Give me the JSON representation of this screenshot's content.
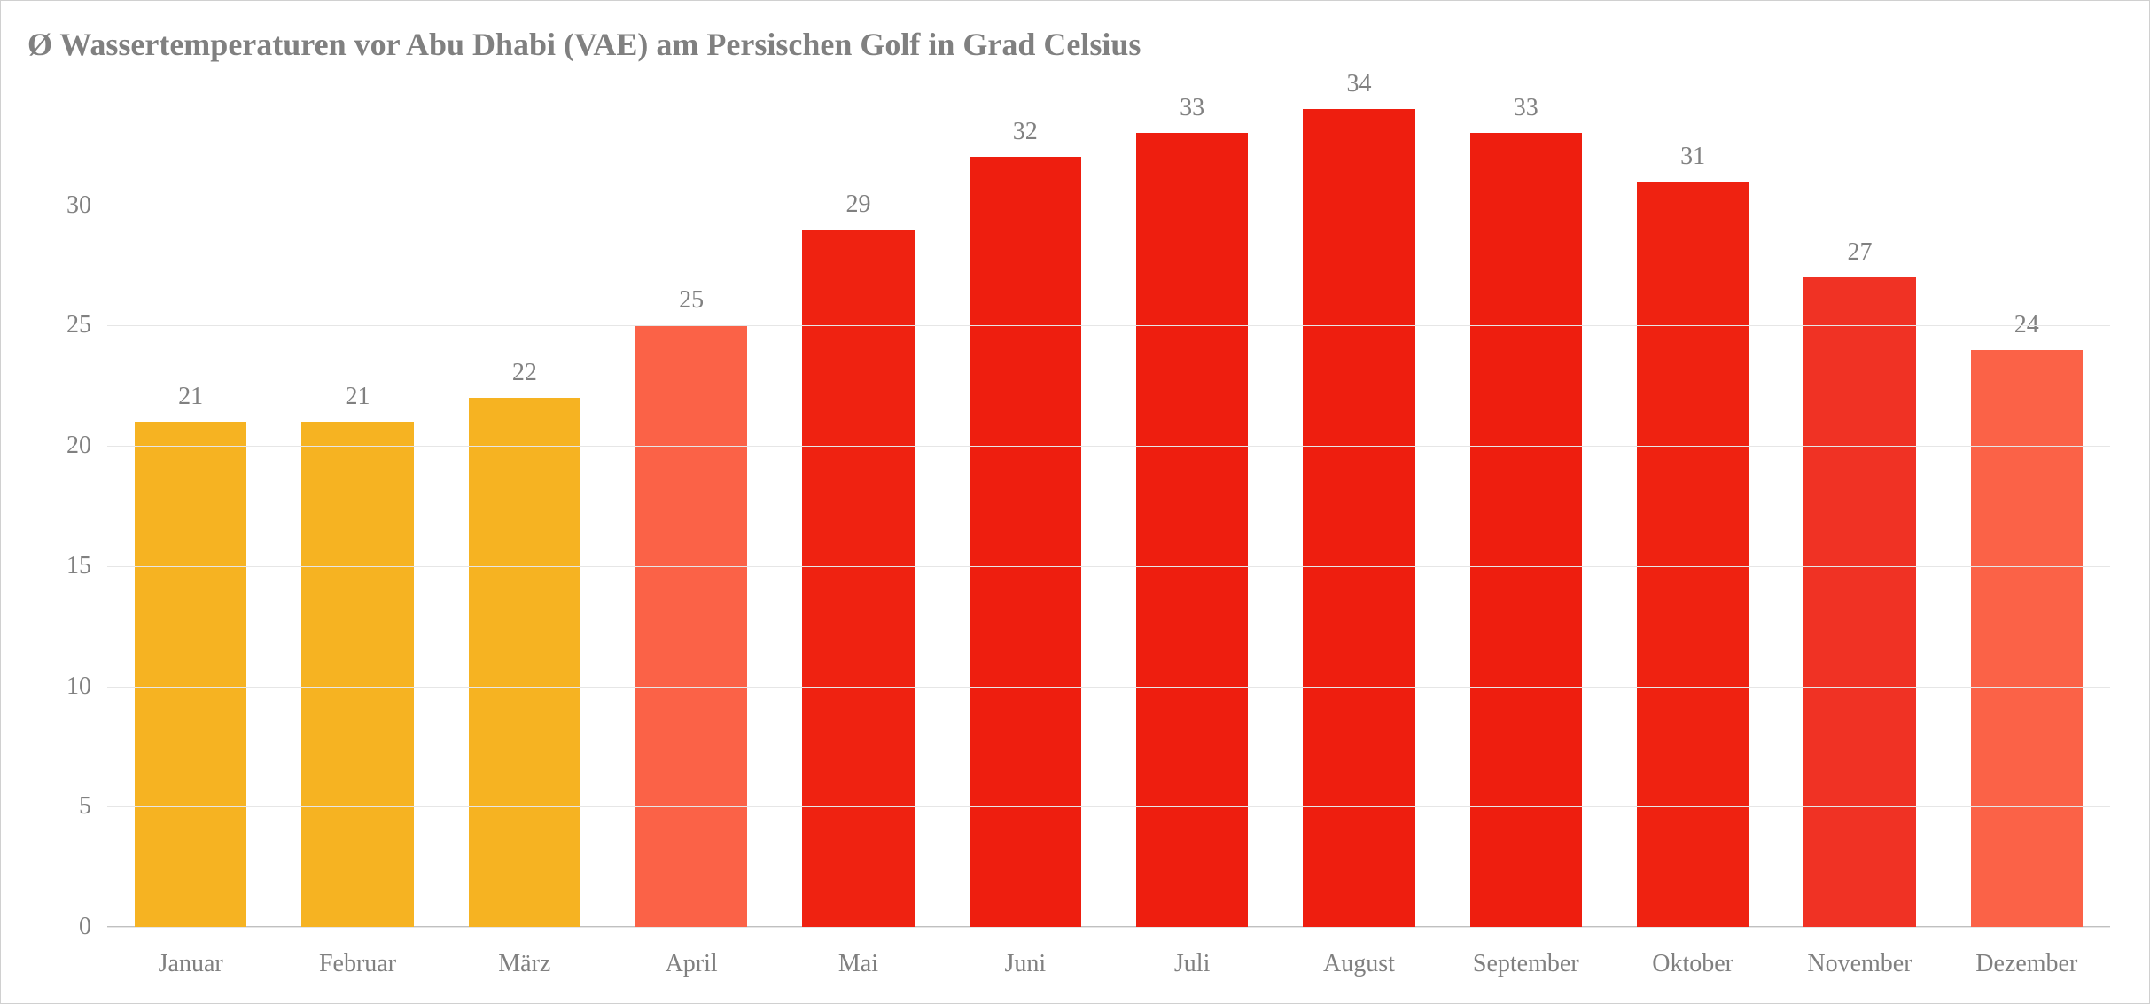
{
  "chart": {
    "type": "bar",
    "title": "Ø Wassertemperaturen vor Abu Dhabi (VAE) am Persischen Golf in Grad Celsius",
    "title_fontsize": 36,
    "title_color": "#808080",
    "background_color": "#ffffff",
    "border_color": "#d0d0d0",
    "grid_color": "#e6e6e6",
    "axis_color": "#c0c0c0",
    "label_color": "#808080",
    "label_fontsize": 28,
    "ylim": [
      0,
      35
    ],
    "ytick_step": 5,
    "yticks": [
      0,
      5,
      10,
      15,
      20,
      25,
      30
    ],
    "bar_width": 0.67,
    "categories": [
      "Januar",
      "Februar",
      "März",
      "April",
      "Mai",
      "Juni",
      "Juli",
      "August",
      "September",
      "Oktober",
      "November",
      "Dezember"
    ],
    "values": [
      21,
      21,
      22,
      25,
      29,
      32,
      33,
      34,
      33,
      31,
      27,
      24
    ],
    "bar_colors": [
      "#f6b322",
      "#f6b322",
      "#f6b322",
      "#fb6247",
      "#ef2211",
      "#ee1e0f",
      "#ee1e0f",
      "#ee1e0f",
      "#ee1e0f",
      "#ef2211",
      "#f03224",
      "#fb6247"
    ]
  }
}
